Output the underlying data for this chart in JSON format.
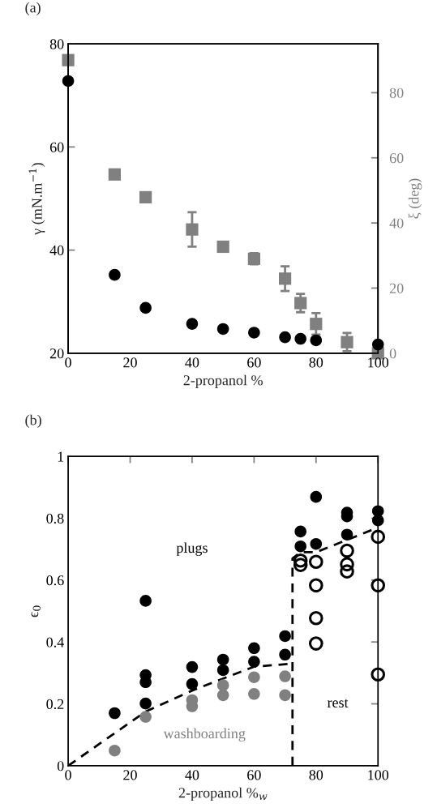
{
  "chart_data": [
    {
      "type": "scatter",
      "title": "(a)",
      "xlabel": "2-propanol %",
      "ylabel": "γ (mN.m$^{−1}$)",
      "y2label": "ξ (deg)",
      "xlim": [
        0,
        100
      ],
      "xticks": [
        0,
        20,
        40,
        60,
        80,
        100
      ],
      "ylim": [
        20,
        80
      ],
      "yticks": [
        20,
        40,
        60,
        80
      ],
      "y2lim": [
        0,
        95
      ],
      "y2ticks": [
        0,
        20,
        40,
        60,
        80
      ],
      "grid": false,
      "legend": false,
      "series": [
        {
          "marker": "circle",
          "color": "#000000",
          "x": [
            0,
            15,
            25,
            40,
            50,
            60,
            70,
            75,
            80,
            100
          ],
          "values": [
            72.8,
            35.2,
            28.8,
            25.7,
            24.7,
            24.0,
            23.1,
            22.8,
            22.5,
            21.7
          ]
        },
        {
          "marker": "square",
          "color": "#808080",
          "axis": "y2",
          "x": [
            0,
            15,
            25,
            40,
            50,
            60,
            70,
            75,
            80,
            90,
            100
          ],
          "values": [
            90.0,
            54.9,
            47.9,
            38.0,
            32.7,
            29.0,
            22.9,
            15.4,
            9.0,
            3.4,
            0
          ],
          "errors": [
            null,
            null,
            null,
            5.3,
            null,
            1.7,
            3.8,
            2.8,
            3.3,
            2.8,
            null
          ]
        }
      ]
    },
    {
      "type": "scatter",
      "title": "(b)",
      "xlabel": "2-propanol %$_{w}$",
      "ylabel": "ϵ$_{0}$",
      "xlim": [
        0,
        100
      ],
      "xticks": [
        0,
        20,
        40,
        60,
        80,
        100
      ],
      "ylim": [
        0,
        1
      ],
      "yticks": [
        0,
        {
          "value": 0.2,
          "label": "0.2"
        },
        {
          "value": 0.4,
          "label": "0.4"
        },
        {
          "value": 0.6,
          "label": "0.6"
        },
        {
          "value": 0.8,
          "label": "0.8"
        },
        1
      ],
      "grid": false,
      "legend": false,
      "series": [
        {
          "marker": "circle",
          "color": "#000000",
          "x": [
            15,
            25,
            25,
            25,
            25,
            40,
            40,
            50,
            50,
            60,
            60,
            70,
            70,
            75,
            75,
            80,
            80,
            90,
            90,
            90,
            100,
            100
          ],
          "values": [
            0.17,
            0.533,
            0.293,
            0.27,
            0.201,
            0.319,
            0.264,
            0.343,
            0.309,
            0.38,
            0.336,
            0.419,
            0.359,
            0.757,
            0.709,
            0.869,
            0.717,
            0.818,
            0.806,
            0.747,
            0.823,
            0.793
          ]
        },
        {
          "marker": "circle",
          "color": "#808080",
          "x": [
            15,
            25,
            40,
            40,
            50,
            50,
            60,
            60,
            70,
            70
          ],
          "values": [
            0.049,
            0.158,
            0.212,
            0.192,
            0.26,
            0.228,
            0.286,
            0.232,
            0.289,
            0.228
          ]
        },
        {
          "marker": "circle",
          "color": "#000000",
          "x": [
            75,
            75,
            80,
            80,
            80,
            80,
            90,
            90,
            90,
            100,
            100,
            100
          ],
          "values": [
            0.663,
            0.649,
            0.659,
            0.583,
            0.477,
            0.395,
            0.695,
            0.651,
            0.628,
            0.74,
            0.583,
            0.295
          ]
        },
        {
          "type": "line",
          "line_style": "dashed",
          "marker": "none",
          "color": "#000000",
          "x": [
            0,
            25,
            40,
            60,
            72.4
          ],
          "values": [
            0,
            0.175,
            0.243,
            0.32,
            0.33
          ]
        },
        {
          "type": "line",
          "line_style": "dashed",
          "marker": "none",
          "color": "#000000",
          "x": [
            72.4,
            72.4,
            75,
            80,
            100
          ],
          "values": [
            0,
            0.67,
            0.69,
            0.69,
            0.77
          ]
        }
      ],
      "annotations": [
        "plugs",
        "washboarding",
        "rest"
      ]
    }
  ]
}
